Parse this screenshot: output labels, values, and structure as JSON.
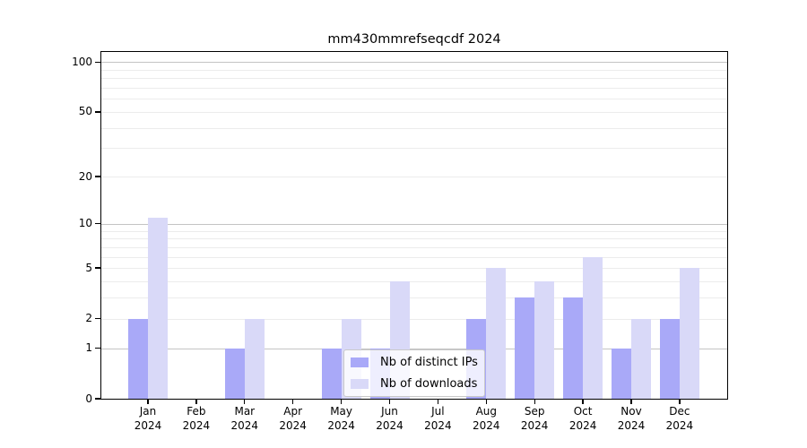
{
  "chart_data": {
    "type": "bar",
    "title": "mm430mmrefseqcdf 2024",
    "categories": [
      "Jan",
      "Feb",
      "Mar",
      "Apr",
      "May",
      "Jun",
      "Jul",
      "Aug",
      "Sep",
      "Oct",
      "Nov",
      "Dec"
    ],
    "x_sublabel": "2024",
    "series": [
      {
        "name": "Nb of distinct IPs",
        "color": "#a9a9f8",
        "values": [
          2,
          0,
          1,
          0,
          1,
          1,
          0,
          2,
          3,
          3,
          1,
          2
        ]
      },
      {
        "name": "Nb of downloads",
        "color": "#d9d9f8",
        "values": [
          11,
          0,
          2,
          0,
          2,
          4,
          0,
          5,
          4,
          6,
          2,
          5
        ]
      }
    ],
    "y_axis": {
      "scale": "log1p",
      "ticks": [
        0,
        1,
        2,
        5,
        10,
        20,
        50,
        100
      ],
      "max": 115,
      "major_gridlines": [
        1,
        10,
        100
      ],
      "minor_gridlines": [
        2,
        3,
        4,
        5,
        6,
        7,
        8,
        9,
        20,
        30,
        40,
        50,
        60,
        70,
        80,
        90
      ]
    },
    "legend": {
      "entries": [
        "Nb of distinct IPs",
        "Nb of downloads"
      ],
      "position": "lower center"
    },
    "colors": {
      "major_grid": "#c4c4c4",
      "minor_grid": "#ececec",
      "axis": "#000000",
      "text": "#000000"
    }
  }
}
